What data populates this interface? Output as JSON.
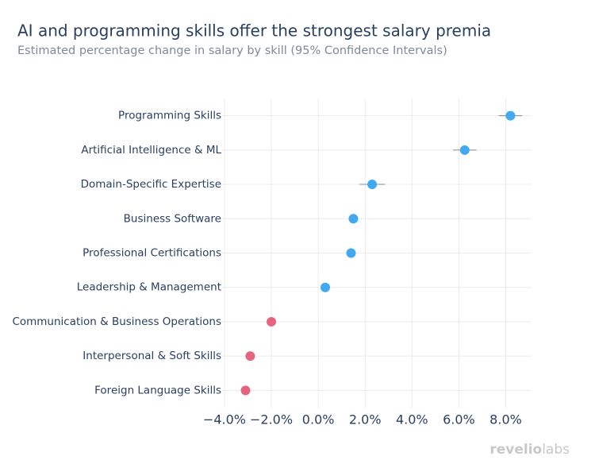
{
  "chart_data": {
    "type": "dot",
    "title": "AI and programming skills offer the strongest salary premia",
    "subtitle": "Estimated percentage change in salary by skill (95% Confidence Intervals)",
    "categories": [
      "Programming Skills",
      "Artificial Intelligence & ML",
      "Domain-Specific Expertise",
      "Business Software",
      "Professional Certifications",
      "Leadership & Management",
      "Communication & Business Operations",
      "Interpersonal & Soft Skills",
      "Foreign Language Skills"
    ],
    "values": [
      8.2,
      6.25,
      2.3,
      1.5,
      1.4,
      0.3,
      -2.0,
      -2.9,
      -3.1
    ],
    "errors": [
      0.5,
      0.5,
      0.55,
      0.15,
      0.1,
      0.1,
      0.1,
      0.1,
      0.15
    ],
    "colors": [
      "#42a8f0",
      "#42a8f0",
      "#42a8f0",
      "#42a8f0",
      "#42a8f0",
      "#42a8f0",
      "#e5657f",
      "#e5657f",
      "#e5657f"
    ],
    "xlim": [
      -4.1,
      9.1
    ],
    "xticks": [
      {
        "value": -4,
        "label": "−4.0%"
      },
      {
        "value": -2,
        "label": "−2.0%"
      },
      {
        "value": 0,
        "label": "0.0%"
      },
      {
        "value": 2,
        "label": "2.0%"
      },
      {
        "value": 4,
        "label": "4.0%"
      },
      {
        "value": 6,
        "label": "6.0%"
      },
      {
        "value": 8,
        "label": "8.0%"
      }
    ],
    "grid": true,
    "logo": [
      "revelio",
      "labs"
    ]
  }
}
